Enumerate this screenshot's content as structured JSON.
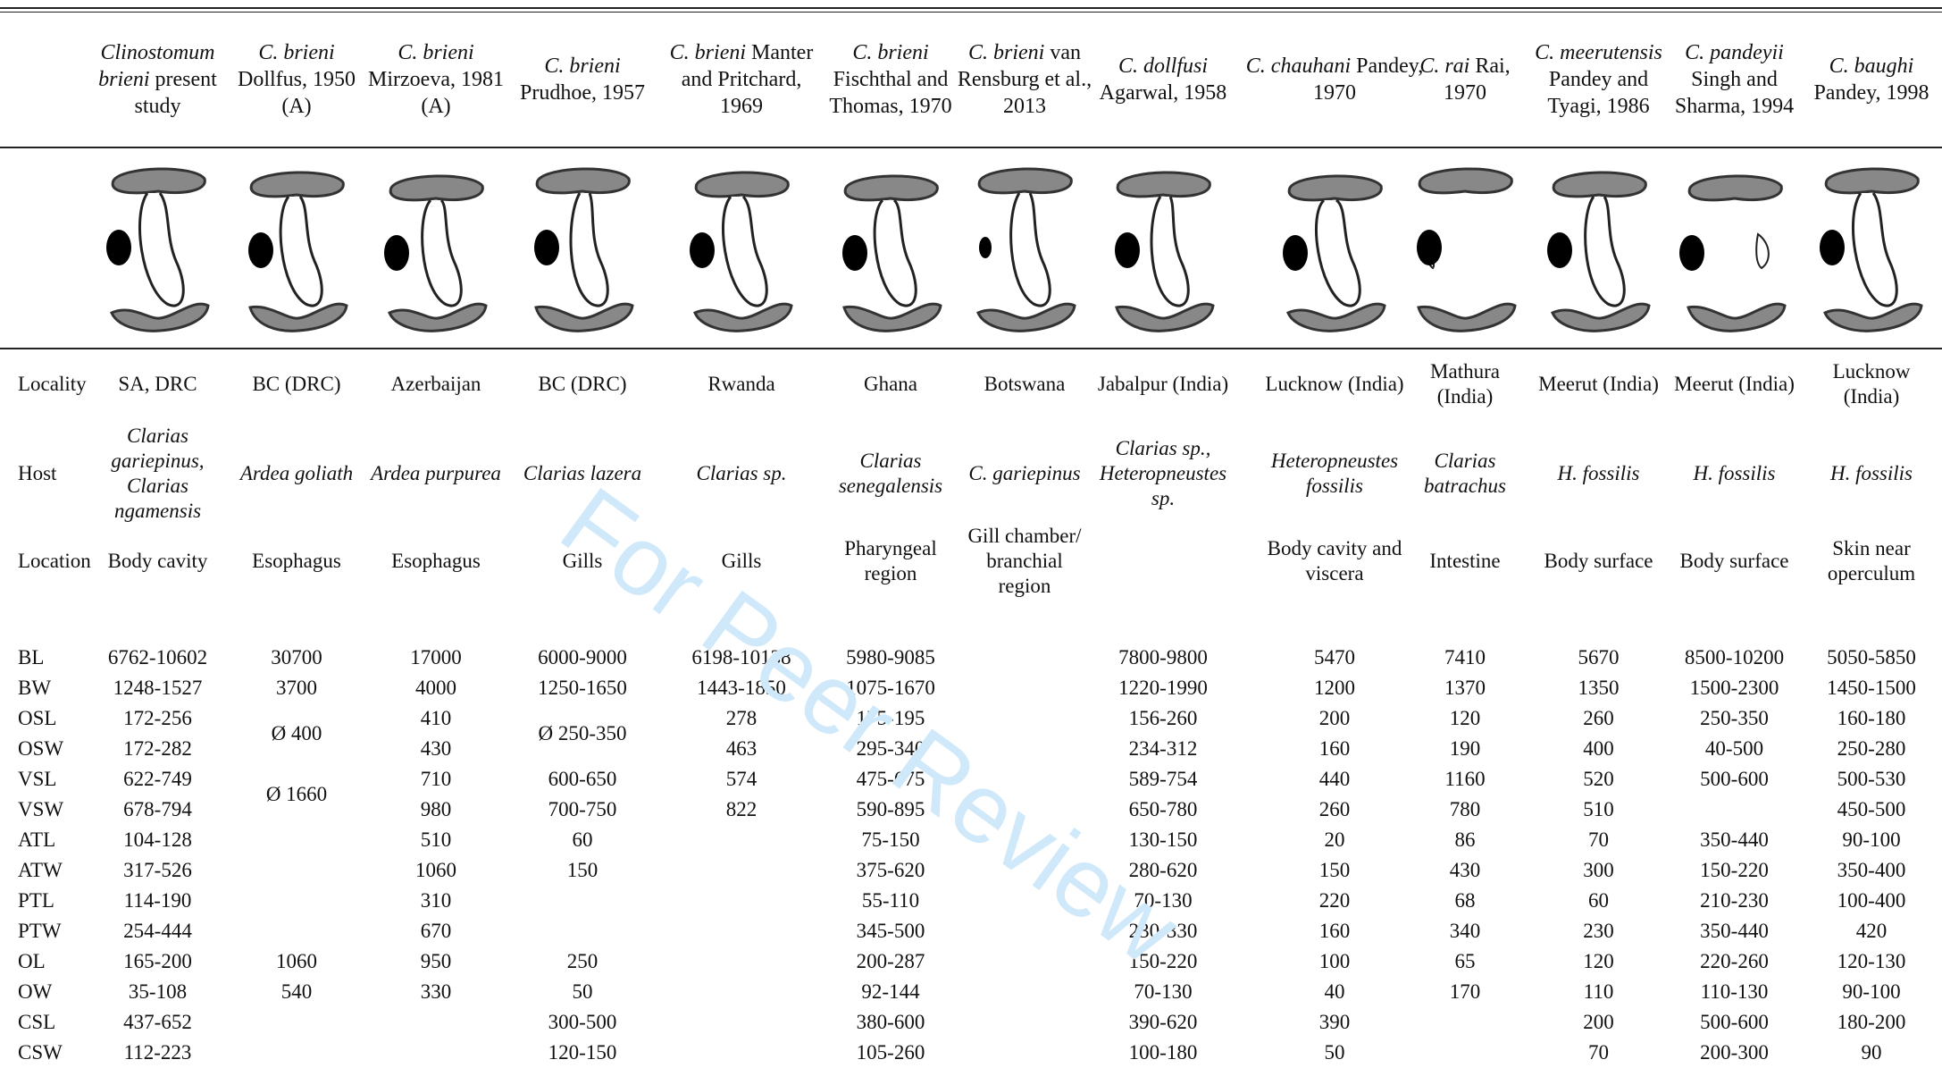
{
  "columns": [
    {
      "sp": "Clinostomum brieni",
      "sub": "present study"
    },
    {
      "sp": "C. brieni",
      "sub": "Dollfus, 1950 (A)"
    },
    {
      "sp": "C. brieni",
      "sub": "Mirzoeva, 1981 (A)"
    },
    {
      "sp": "C. brieni",
      "sub": "Prudhoe, 1957"
    },
    {
      "sp": "C. brieni",
      "sub": "Manter and Pritchard, 1969"
    },
    {
      "sp": "C. brieni",
      "sub": "Fischthal and Thomas, 1970"
    },
    {
      "sp": "C. brieni",
      "sub": "van Rensburg et al., 2013"
    },
    {
      "sp": "C. dollfusi",
      "sub": "Agarwal, 1958"
    },
    {
      "sp": "C. chauhani",
      "sub": "Pandey, 1970"
    },
    {
      "sp": "C. rai",
      "sub": "Rai, 1970"
    },
    {
      "sp": "C. meerutensis",
      "sub": "Pandey and Tyagi, 1986"
    },
    {
      "sp": "C. pandeyii",
      "sub": "Singh and Sharma, 1994"
    },
    {
      "sp": "C. baughi",
      "sub": "Pandey, 1998"
    }
  ],
  "rows": [
    {
      "label": "Locality",
      "values": [
        "SA, DRC",
        "BC (DRC)",
        "Azerbaijan",
        "BC (DRC)",
        "Rwanda",
        "Ghana",
        "Botswana",
        "Jabalpur (India)",
        "Lucknow (India)",
        "Mathura (India)",
        "Meerut (India)",
        "Meerut (India)",
        "Lucknow (India)"
      ]
    },
    {
      "label": "Host",
      "values": [
        "Clarias gariepinus, Clarias ngamensis",
        "Ardea goliath",
        "Ardea purpurea",
        "Clarias lazera",
        "Clarias sp.",
        "Clarias senegalensis",
        "C. gariepinus",
        "Clarias sp., Heteropneustes sp.",
        "Heteropneustes fossilis",
        "Clarias batrachus",
        "H. fossilis",
        "H. fossilis",
        "H. fossilis"
      ]
    },
    {
      "label": "Location",
      "values": [
        "Body cavity",
        "Esophagus",
        "Esophagus",
        "Gills",
        "Gills",
        "Pharyngeal region",
        "Gill chamber/ branchial region",
        "",
        "Body cavity and viscera",
        "Intestine",
        "Body surface",
        "Body surface",
        "Skin near operculum"
      ]
    }
  ],
  "measures": [
    {
      "label": "BL",
      "values": [
        "6762-10602",
        "30700",
        "17000",
        "6000-9000",
        "6198-10138",
        "5980-9085",
        "",
        "7800-9800",
        "5470",
        "7410",
        "5670",
        "8500-10200",
        "5050-5850"
      ]
    },
    {
      "label": "BW",
      "values": [
        "1248-1527",
        "3700",
        "4000",
        "1250-1650",
        "1443-1850",
        "1075-1670",
        "",
        "1220-1990",
        "1200",
        "1370",
        "1350",
        "1500-2300",
        "1450-1500"
      ]
    },
    {
      "label": "OSL",
      "values": [
        "172-256",
        "",
        "410",
        "",
        "278",
        "175-195",
        "",
        "156-260",
        "200",
        "120",
        "260",
        "250-350",
        "160-180"
      ]
    },
    {
      "label": "OSW",
      "values": [
        "172-282",
        "",
        "430",
        "",
        "463",
        "295-340",
        "",
        "234-312",
        "160",
        "190",
        "400",
        "40-500",
        "250-280"
      ]
    },
    {
      "label": "VSL",
      "values": [
        "622-749",
        "",
        "710",
        "600-650",
        "574",
        "475-675",
        "",
        "589-754",
        "440",
        "1160",
        "520",
        "500-600",
        "500-530"
      ]
    },
    {
      "label": "VSW",
      "values": [
        "678-794",
        "",
        "980",
        "700-750",
        "822",
        "590-895",
        "",
        "650-780",
        "260",
        "780",
        "510",
        "",
        "450-500"
      ]
    },
    {
      "label": "ATL",
      "values": [
        "104-128",
        "",
        "510",
        "60",
        "",
        "75-150",
        "",
        "130-150",
        "20",
        "86",
        "70",
        "350-440",
        "90-100"
      ]
    },
    {
      "label": "ATW",
      "values": [
        "317-526",
        "",
        "1060",
        "150",
        "",
        "375-620",
        "",
        "280-620",
        "150",
        "430",
        "300",
        "150-220",
        "350-400"
      ]
    },
    {
      "label": "PTL",
      "values": [
        "114-190",
        "",
        "310",
        "",
        "",
        "55-110",
        "",
        "70-130",
        "220",
        "68",
        "60",
        "210-230",
        "100-400"
      ]
    },
    {
      "label": "PTW",
      "values": [
        "254-444",
        "",
        "670",
        "",
        "",
        "345-500",
        "",
        "230-330",
        "160",
        "340",
        "230",
        "350-440",
        "420"
      ]
    },
    {
      "label": "OL",
      "values": [
        "165-200",
        "1060",
        "950",
        "250",
        "",
        "200-287",
        "",
        "150-220",
        "100",
        "65",
        "120",
        "220-260",
        "120-130"
      ]
    },
    {
      "label": "OW",
      "values": [
        "35-108",
        "540",
        "330",
        "50",
        "",
        "92-144",
        "",
        "70-130",
        "40",
        "170",
        "110",
        "110-130",
        "90-100"
      ]
    },
    {
      "label": "CSL",
      "values": [
        "437-652",
        "",
        "",
        "300-500",
        "",
        "380-600",
        "",
        "390-620",
        "390",
        "",
        "200",
        "500-600",
        "180-200"
      ]
    },
    {
      "label": "CSW",
      "values": [
        "112-223",
        "",
        "",
        "120-150",
        "",
        "105-260",
        "",
        "100-180",
        "50",
        "",
        "70",
        "200-300",
        "90"
      ]
    }
  ],
  "merged": [
    {
      "value": "Ø 400"
    },
    {
      "value": "Ø 1660"
    },
    {
      "value": "Ø 250-350"
    }
  ],
  "watermark": "For Peer Review",
  "colors": {
    "rule": "#222222",
    "watermark": "#cfe9fb",
    "organ_fill": "#888888",
    "ovary": "#000000"
  }
}
